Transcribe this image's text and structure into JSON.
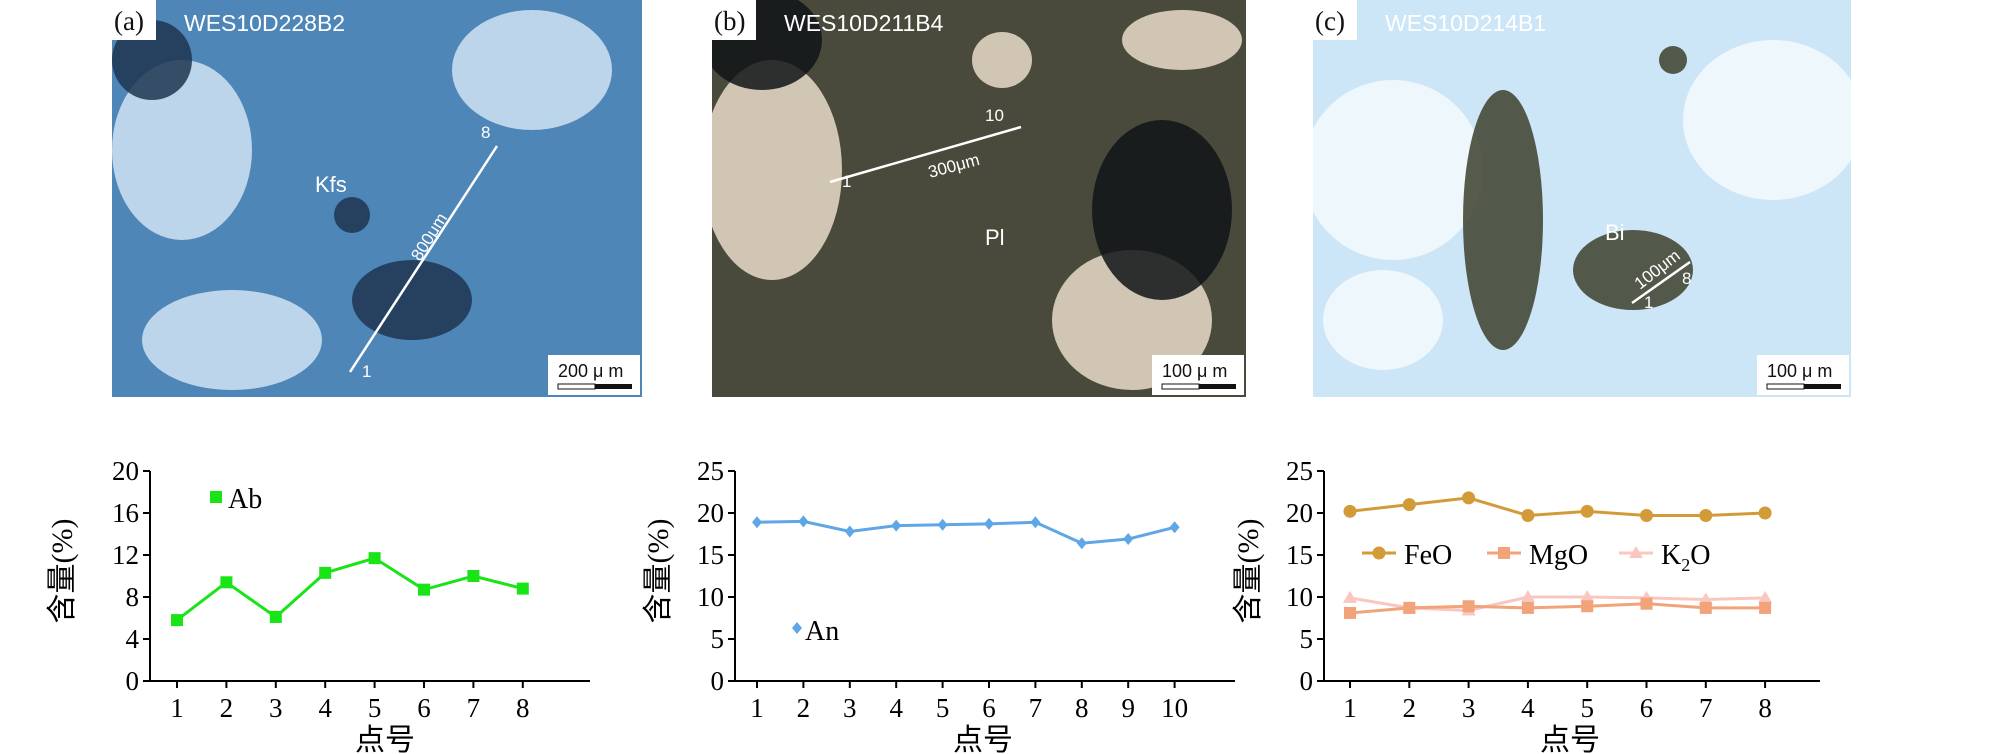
{
  "panels": [
    {
      "letter": "(a)",
      "sample": "WES10D228B2",
      "mineral": "Kfs",
      "profile_start": "1",
      "profile_end": "8",
      "profile_length": "800μm",
      "scale_bar": "200 μ m",
      "colors": {
        "base": "#4f86b8",
        "accent": "#cfe3f2",
        "dark": "#1e3550"
      }
    },
    {
      "letter": "(b)",
      "sample": "WES10D211B4",
      "mineral": "Pl",
      "profile_start": "1",
      "profile_end": "10",
      "profile_length": "300μm",
      "scale_bar": "100 μ m",
      "colors": {
        "base": "#4a4a3c",
        "accent": "#e7dcc8",
        "dark": "#101418"
      }
    },
    {
      "letter": "(c)",
      "sample": "WES10D214B1",
      "mineral": "Bi",
      "profile_start": "1",
      "profile_end": "8",
      "profile_length": "100μm",
      "scale_bar": "100 μ m",
      "colors": {
        "base": "#cde6f7",
        "accent": "#f3f9fd",
        "dark": "#3c3f2c"
      }
    }
  ],
  "chart_data": [
    {
      "type": "line",
      "xlabel": "点号",
      "ylabel": "含量(%)",
      "x": [
        1,
        2,
        3,
        4,
        5,
        6,
        7,
        8
      ],
      "ylim": [
        0,
        20
      ],
      "yticks": [
        0,
        4,
        8,
        12,
        16,
        20
      ],
      "grid": false,
      "legend_position": "top-left",
      "series": [
        {
          "name": "Ab",
          "marker": "square",
          "color": "#18e418",
          "values": [
            5.8,
            9.4,
            6.1,
            10.3,
            11.7,
            8.7,
            10.0,
            8.8
          ]
        }
      ]
    },
    {
      "type": "line",
      "xlabel": "点号",
      "ylabel": "含量(%)",
      "x": [
        1,
        2,
        3,
        4,
        5,
        6,
        7,
        8,
        9,
        10
      ],
      "ylim": [
        0,
        25
      ],
      "yticks": [
        0,
        5,
        10,
        15,
        20,
        25
      ],
      "grid": false,
      "legend_position": "bottom-left",
      "series": [
        {
          "name": "An",
          "marker": "diamond",
          "color": "#5ea6e6",
          "values": [
            18.9,
            19.0,
            17.8,
            18.5,
            18.6,
            18.7,
            18.9,
            16.4,
            16.9,
            18.3
          ]
        }
      ]
    },
    {
      "type": "line",
      "xlabel": "点号",
      "ylabel": "含量(%)",
      "x": [
        1,
        2,
        3,
        4,
        5,
        6,
        7,
        8
      ],
      "ylim": [
        0,
        25
      ],
      "yticks": [
        0,
        5,
        10,
        15,
        20,
        25
      ],
      "grid": false,
      "legend_position": "middle",
      "series": [
        {
          "name": "FeO",
          "marker": "circle",
          "color": "#d39a38",
          "values": [
            20.2,
            21.0,
            21.8,
            19.7,
            20.2,
            19.7,
            19.7,
            20.0
          ]
        },
        {
          "name": "MgO",
          "marker": "square",
          "color": "#f2a37a",
          "values": [
            8.1,
            8.7,
            8.9,
            8.7,
            8.9,
            9.2,
            8.7,
            8.7
          ]
        },
        {
          "name": "K2O",
          "label_main": "K",
          "label_sub": "2",
          "label_tail": "O",
          "marker": "triangle",
          "color": "#f9c6c0",
          "values": [
            9.9,
            8.7,
            8.4,
            10.0,
            10.0,
            9.9,
            9.7,
            9.9
          ]
        }
      ]
    }
  ]
}
